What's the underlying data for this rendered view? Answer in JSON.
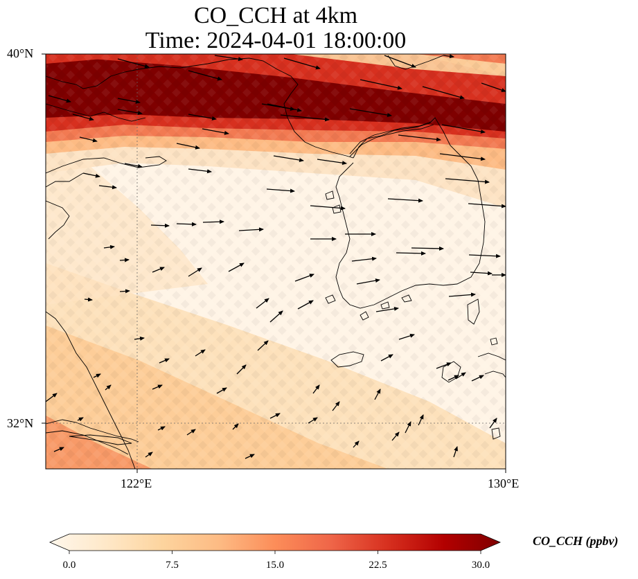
{
  "title": {
    "line1": "CO_CCH at 4km",
    "line2": "Time: 2024-04-01 18:00:00"
  },
  "map": {
    "lat_range": [
      31,
      40
    ],
    "lon_range": [
      120,
      130
    ],
    "lat_ticks": [
      "40°N",
      "32°N"
    ],
    "lon_ticks": [
      "122°E",
      "130°E"
    ],
    "gridlines": "dotted",
    "field_colormap": "OrRd",
    "wind_vectors": "westerly/west-north-westerly, strongest in the north"
  },
  "colorbar": {
    "label": "CO_CCH (ppbv)",
    "tick_labels": [
      "0.0",
      "7.5",
      "15.0",
      "22.5",
      "30.0"
    ],
    "min": 0,
    "max": 30,
    "extend": "both",
    "colors": [
      "#fff7ec",
      "#fee8c8",
      "#fdd49e",
      "#fdbb84",
      "#fc8d59",
      "#ef6548",
      "#d7301f",
      "#b30000",
      "#7f0000"
    ]
  }
}
